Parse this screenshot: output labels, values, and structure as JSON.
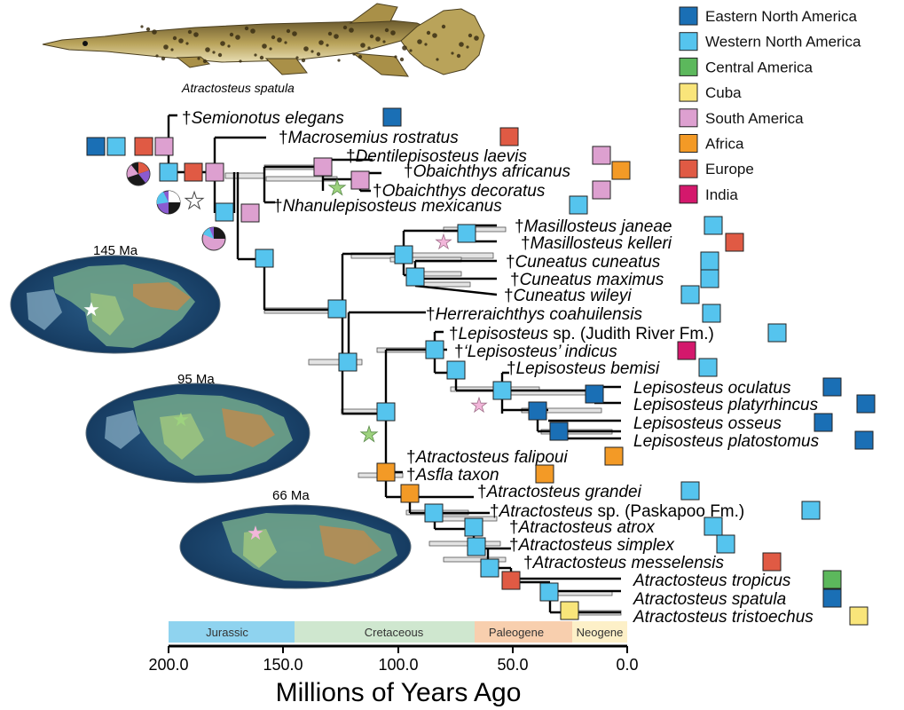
{
  "caption": "Atractosteus spatula",
  "legend": [
    {
      "label": "Eastern North America",
      "color": "#1a6fb5"
    },
    {
      "label": "Western North America",
      "color": "#55c4ee"
    },
    {
      "label": "Central America",
      "color": "#5cb85c"
    },
    {
      "label": "Cuba",
      "color": "#f9e57a"
    },
    {
      "label": "South America",
      "color": "#dda0d0"
    },
    {
      "label": "Africa",
      "color": "#f39a26"
    },
    {
      "label": "Europe",
      "color": "#e05a44"
    },
    {
      "label": "India",
      "color": "#d4186c"
    }
  ],
  "maps": [
    {
      "label": "145 Ma"
    },
    {
      "label": "95 Ma"
    },
    {
      "label": "66 Ma"
    }
  ],
  "periods": [
    "Jurassic",
    "Cretaceous",
    "Paleogene",
    "Neogene"
  ],
  "axis": {
    "ticks": [
      "200.0",
      "150.0",
      "100.0",
      "50.0",
      "0.0"
    ],
    "title": "Millions of Years Ago"
  },
  "taxa": [
    {
      "dagger": "†",
      "name": "Semionotus elegans",
      "extra": "",
      "region": "Eastern North America"
    },
    {
      "dagger": "†",
      "name": "Macrosemius rostratus",
      "extra": "",
      "region": "Europe"
    },
    {
      "dagger": "†",
      "name": "Dentilepisosteus laevis",
      "extra": "",
      "region": "South America"
    },
    {
      "dagger": "†",
      "name": "Obaichthys africanus",
      "extra": "",
      "region": "Africa"
    },
    {
      "dagger": "†",
      "name": "Obaichthys decoratus",
      "extra": "",
      "region": "South America"
    },
    {
      "dagger": "†",
      "name": "Nhanulepisosteus mexicanus",
      "extra": "",
      "region": "Western North America"
    },
    {
      "dagger": "†",
      "name": "Masillosteus janeae",
      "extra": "",
      "region": "Western North America"
    },
    {
      "dagger": "†",
      "name": "Masillosteus kelleri",
      "extra": "",
      "region": "Europe"
    },
    {
      "dagger": "†",
      "name": "Cuneatus cuneatus",
      "extra": "",
      "region": "Western North America"
    },
    {
      "dagger": "†",
      "name": "Cuneatus maximus",
      "extra": "",
      "region": "Western North America"
    },
    {
      "dagger": "†",
      "name": "Cuneatus wileyi",
      "extra": "",
      "region": "Western North America"
    },
    {
      "dagger": "†",
      "name": "Herreraichthys coahuilensis",
      "extra": "",
      "region": "Western North America"
    },
    {
      "dagger": "†",
      "name": "Lepisosteus",
      "extra": " sp. (Judith River Fm.)",
      "region": "Western North America"
    },
    {
      "dagger": "†",
      "name": "‘Lepisosteus’ indicus",
      "extra": "",
      "region": "India"
    },
    {
      "dagger": "†",
      "name": "Lepisosteus bemisi",
      "extra": "",
      "region": "Western North America"
    },
    {
      "dagger": "",
      "name": "Lepisosteus oculatus",
      "extra": "",
      "region": "Eastern North America"
    },
    {
      "dagger": "",
      "name": "Lepisosteus platyrhincus",
      "extra": "",
      "region": "Eastern North America"
    },
    {
      "dagger": "",
      "name": "Lepisosteus osseus",
      "extra": "",
      "region": "Eastern North America"
    },
    {
      "dagger": "",
      "name": "Lepisosteus platostomus",
      "extra": "",
      "region": "Eastern North America"
    },
    {
      "dagger": "†",
      "name": "Atractosteus falipoui",
      "extra": "",
      "region": "Africa"
    },
    {
      "dagger": "†",
      "name": "Asfla taxon",
      "extra": "",
      "region": "Africa"
    },
    {
      "dagger": "†",
      "name": "Atractosteus grandei",
      "extra": "",
      "region": "Western North America"
    },
    {
      "dagger": "†",
      "name": "Atractosteus",
      "extra": " sp. (Paskapoo Fm.)",
      "region": "Western North America"
    },
    {
      "dagger": "†",
      "name": "Atractosteus atrox",
      "extra": "",
      "region": "Western North America"
    },
    {
      "dagger": "†",
      "name": "Atractosteus simplex",
      "extra": "",
      "region": "Western North America"
    },
    {
      "dagger": "†",
      "name": "Atractosteus messelensis",
      "extra": "",
      "region": "Europe"
    },
    {
      "dagger": "",
      "name": "Atractosteus tropicus",
      "extra": "",
      "region": "Central America"
    },
    {
      "dagger": "",
      "name": "Atractosteus spatula",
      "extra": "",
      "region": "Eastern North America"
    },
    {
      "dagger": "",
      "name": "Atractosteus tristoechus",
      "extra": "",
      "region": "Cuba"
    }
  ]
}
